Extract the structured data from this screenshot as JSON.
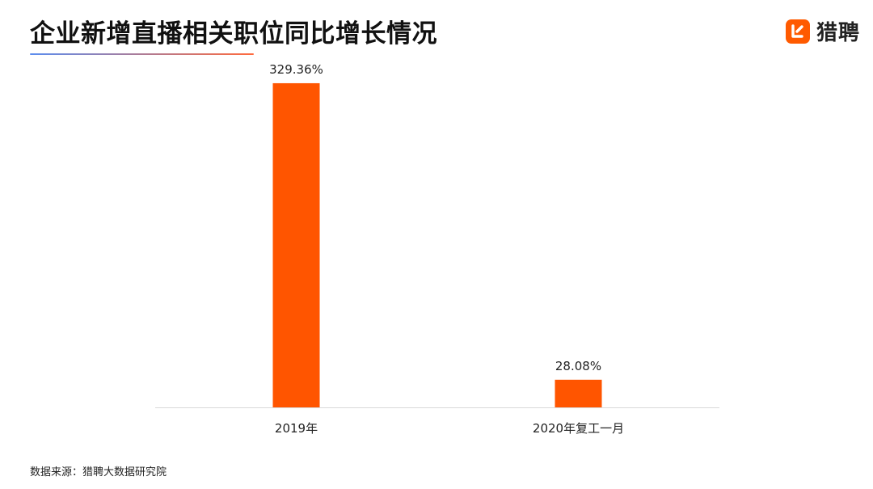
{
  "title": "企业新增直播相关职位同比增长情况",
  "brand": {
    "name": "猎聘",
    "icon": "liepin-logo-icon",
    "color": "#ff5a00"
  },
  "source": "数据来源：猎聘大数据研究院",
  "colors": {
    "bar": "#ff5500",
    "underline_start": "#5b8def",
    "underline_end": "#ff6a3d",
    "axis": "#d9d9d9"
  },
  "chart_data": {
    "type": "bar",
    "categories": [
      "2019年",
      "2020年复工一月"
    ],
    "values": [
      329.36,
      28.08
    ],
    "value_labels": [
      "329.36%",
      "28.08%"
    ],
    "ylim": [
      0,
      340
    ],
    "grid": false,
    "legend": "none"
  }
}
